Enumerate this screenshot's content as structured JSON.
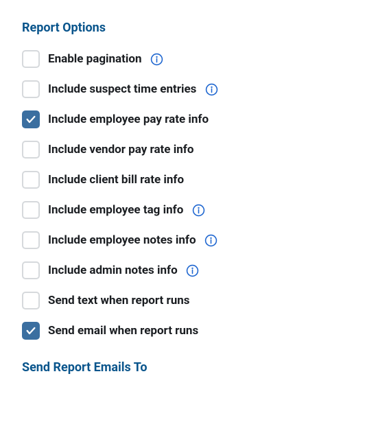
{
  "colors": {
    "heading": "#0a558c",
    "label": "#1a1d21",
    "checkbox_border": "#d6d9dc",
    "checkbox_checked_bg": "#3b6fa0",
    "info_icon": "#1e66d0",
    "background": "#ffffff"
  },
  "typography": {
    "heading_fontsize": 18,
    "heading_fontweight": 700,
    "label_fontsize": 17,
    "label_fontweight": 700
  },
  "sections": {
    "report_options": {
      "heading": "Report Options",
      "options": [
        {
          "key": "enable_pagination",
          "label": "Enable pagination",
          "checked": false,
          "has_info": true
        },
        {
          "key": "include_suspect_time_entries",
          "label": "Include suspect time entries",
          "checked": false,
          "has_info": true
        },
        {
          "key": "include_employee_pay_rate_info",
          "label": "Include employee pay rate info",
          "checked": true,
          "has_info": false
        },
        {
          "key": "include_vendor_pay_rate_info",
          "label": "Include vendor pay rate info",
          "checked": false,
          "has_info": false
        },
        {
          "key": "include_client_bill_rate_info",
          "label": "Include client bill rate info",
          "checked": false,
          "has_info": false
        },
        {
          "key": "include_employee_tag_info",
          "label": "Include employee tag info",
          "checked": false,
          "has_info": true
        },
        {
          "key": "include_employee_notes_info",
          "label": "Include employee notes info",
          "checked": false,
          "has_info": true
        },
        {
          "key": "include_admin_notes_info",
          "label": "Include admin notes info",
          "checked": false,
          "has_info": true
        },
        {
          "key": "send_text_when_report_runs",
          "label": "Send text when report runs",
          "checked": false,
          "has_info": false
        },
        {
          "key": "send_email_when_report_runs",
          "label": "Send email when report runs",
          "checked": true,
          "has_info": false
        }
      ]
    },
    "send_report_emails_to": {
      "heading": "Send Report Emails To"
    }
  }
}
